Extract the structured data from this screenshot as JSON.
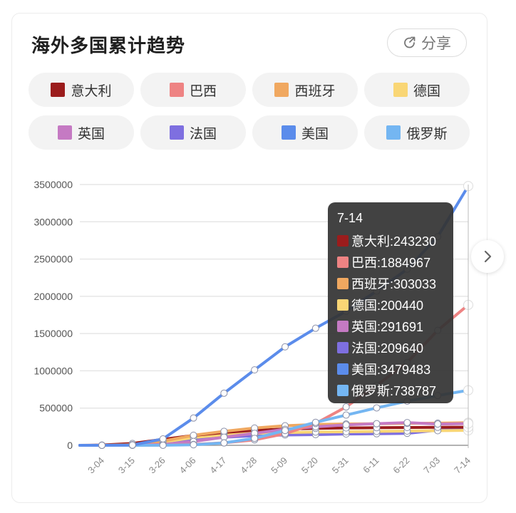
{
  "header": {
    "title": "海外多国累计趋势",
    "share_label": "分享",
    "share_icon": "share-icon"
  },
  "legend": [
    {
      "label": "意大利",
      "color": "#9b1c1c"
    },
    {
      "label": "巴西",
      "color": "#ee8383"
    },
    {
      "label": "西班牙",
      "color": "#f0a860"
    },
    {
      "label": "德国",
      "color": "#f9d675"
    },
    {
      "label": "英国",
      "color": "#c57ac3"
    },
    {
      "label": "法国",
      "color": "#7e6fe0"
    },
    {
      "label": "美国",
      "color": "#5b8ceb"
    },
    {
      "label": "俄罗斯",
      "color": "#74b6f2"
    }
  ],
  "tooltip": {
    "date": "7-14",
    "rows": [
      {
        "label": "意大利:243230",
        "color": "#9b1c1c"
      },
      {
        "label": "巴西:1884967",
        "color": "#ee8383"
      },
      {
        "label": "西班牙:303033",
        "color": "#f0a860"
      },
      {
        "label": "德国:200440",
        "color": "#f9d675"
      },
      {
        "label": "英国:291691",
        "color": "#c57ac3"
      },
      {
        "label": "法国:209640",
        "color": "#7e6fe0"
      },
      {
        "label": "美国:3479483",
        "color": "#5b8ceb"
      },
      {
        "label": "俄罗斯:738787",
        "color": "#74b6f2"
      }
    ]
  },
  "next_icon": "chevron-right-icon",
  "chart_data": {
    "type": "line",
    "title": "海外多国累计趋势",
    "xlabel": "",
    "ylabel": "",
    "ylim": [
      0,
      3500000
    ],
    "yticks": [
      0,
      500000,
      1000000,
      1500000,
      2000000,
      2500000,
      3000000,
      3500000
    ],
    "grid": true,
    "legend_position": "top",
    "categories": [
      "3-04",
      "3-15",
      "3-26",
      "4-06",
      "4-17",
      "4-28",
      "5-09",
      "5-20",
      "5-31",
      "6-11",
      "6-22",
      "7-03",
      "7-14"
    ],
    "series": [
      {
        "name": "意大利",
        "color": "#9b1c1c",
        "values": [
          3089,
          24747,
          80589,
          132547,
          172434,
          201505,
          218268,
          227364,
          233019,
          236142,
          238833,
          241184,
          243230
        ]
      },
      {
        "name": "巴西",
        "color": "#ee8383",
        "values": [
          4,
          200,
          2915,
          12056,
          33682,
          73235,
          155939,
          293357,
          514849,
          805649,
          1111348,
          1543341,
          1884967
        ]
      },
      {
        "name": "西班牙",
        "color": "#f0a860",
        "values": [
          222,
          7798,
          56188,
          135032,
          188068,
          232128,
          262783,
          279524,
          286509,
          289787,
          293832,
          297625,
          303033
        ]
      },
      {
        "name": "德国",
        "color": "#f9d675",
        "values": [
          262,
          5795,
          43938,
          103374,
          141672,
          159912,
          170508,
          177778,
          181815,
          186522,
          191216,
          196096,
          200440
        ]
      },
      {
        "name": "英国",
        "color": "#c57ac3",
        "values": [
          85,
          1144,
          11658,
          51608,
          108692,
          161145,
          215260,
          248818,
          274762,
          290143,
          305289,
          285416,
          291691
        ]
      },
      {
        "name": "法国",
        "color": "#7e6fe0",
        "values": [
          285,
          5423,
          29155,
          70478,
          108847,
          128339,
          138421,
          143845,
          151753,
          155136,
          160093,
          204222,
          209640
        ]
      },
      {
        "name": "美国",
        "color": "#5b8ceb",
        "values": [
          159,
          3499,
          85991,
          366614,
          699706,
          1012582,
          1322054,
          1571617,
          1800000,
          2070000,
          2363825,
          2800000,
          3479483
        ]
      },
      {
        "name": "俄罗斯",
        "color": "#74b6f2",
        "values": [
          3,
          63,
          840,
          7497,
          32008,
          93558,
          198676,
          308705,
          405843,
          502436,
          592280,
          667883,
          738787
        ]
      }
    ]
  }
}
